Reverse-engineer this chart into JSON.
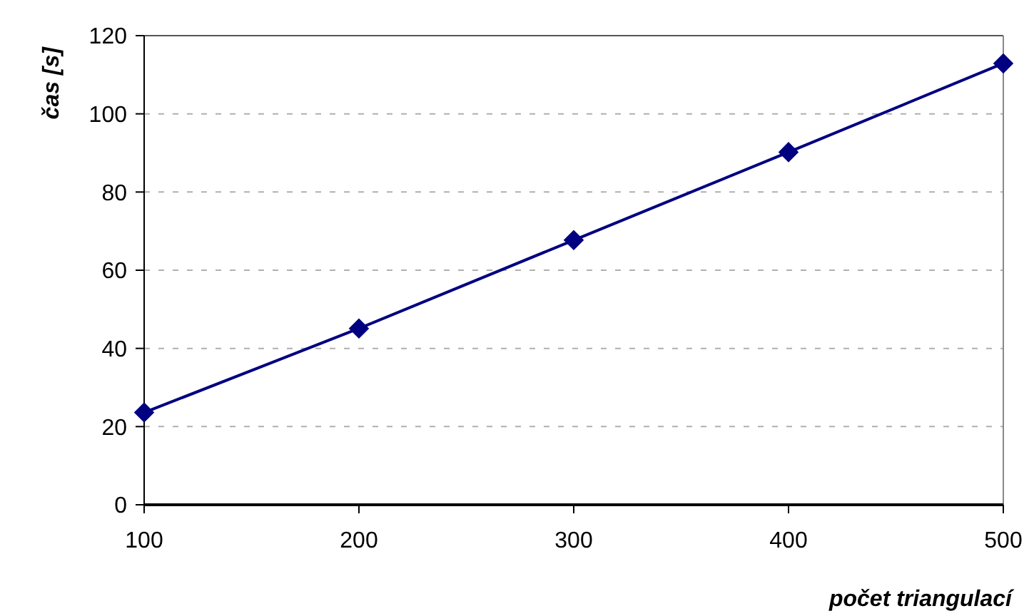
{
  "chart_data": {
    "type": "line",
    "xlabel": "počet triangulací",
    "ylabel": "čas [s]",
    "x": [
      100,
      200,
      300,
      400,
      500
    ],
    "series": [
      {
        "color": "#000080",
        "values": [
          23.6,
          45.1,
          67.7,
          90.2,
          112.9
        ]
      }
    ],
    "xlim": [
      100,
      500
    ],
    "xticks": [
      100,
      200,
      300,
      400,
      500
    ],
    "ylim": [
      0,
      120
    ],
    "yticks": [
      0,
      20,
      40,
      60,
      80,
      100,
      120
    ],
    "grid": "y",
    "marker": "diamond",
    "line_style": "solid"
  }
}
